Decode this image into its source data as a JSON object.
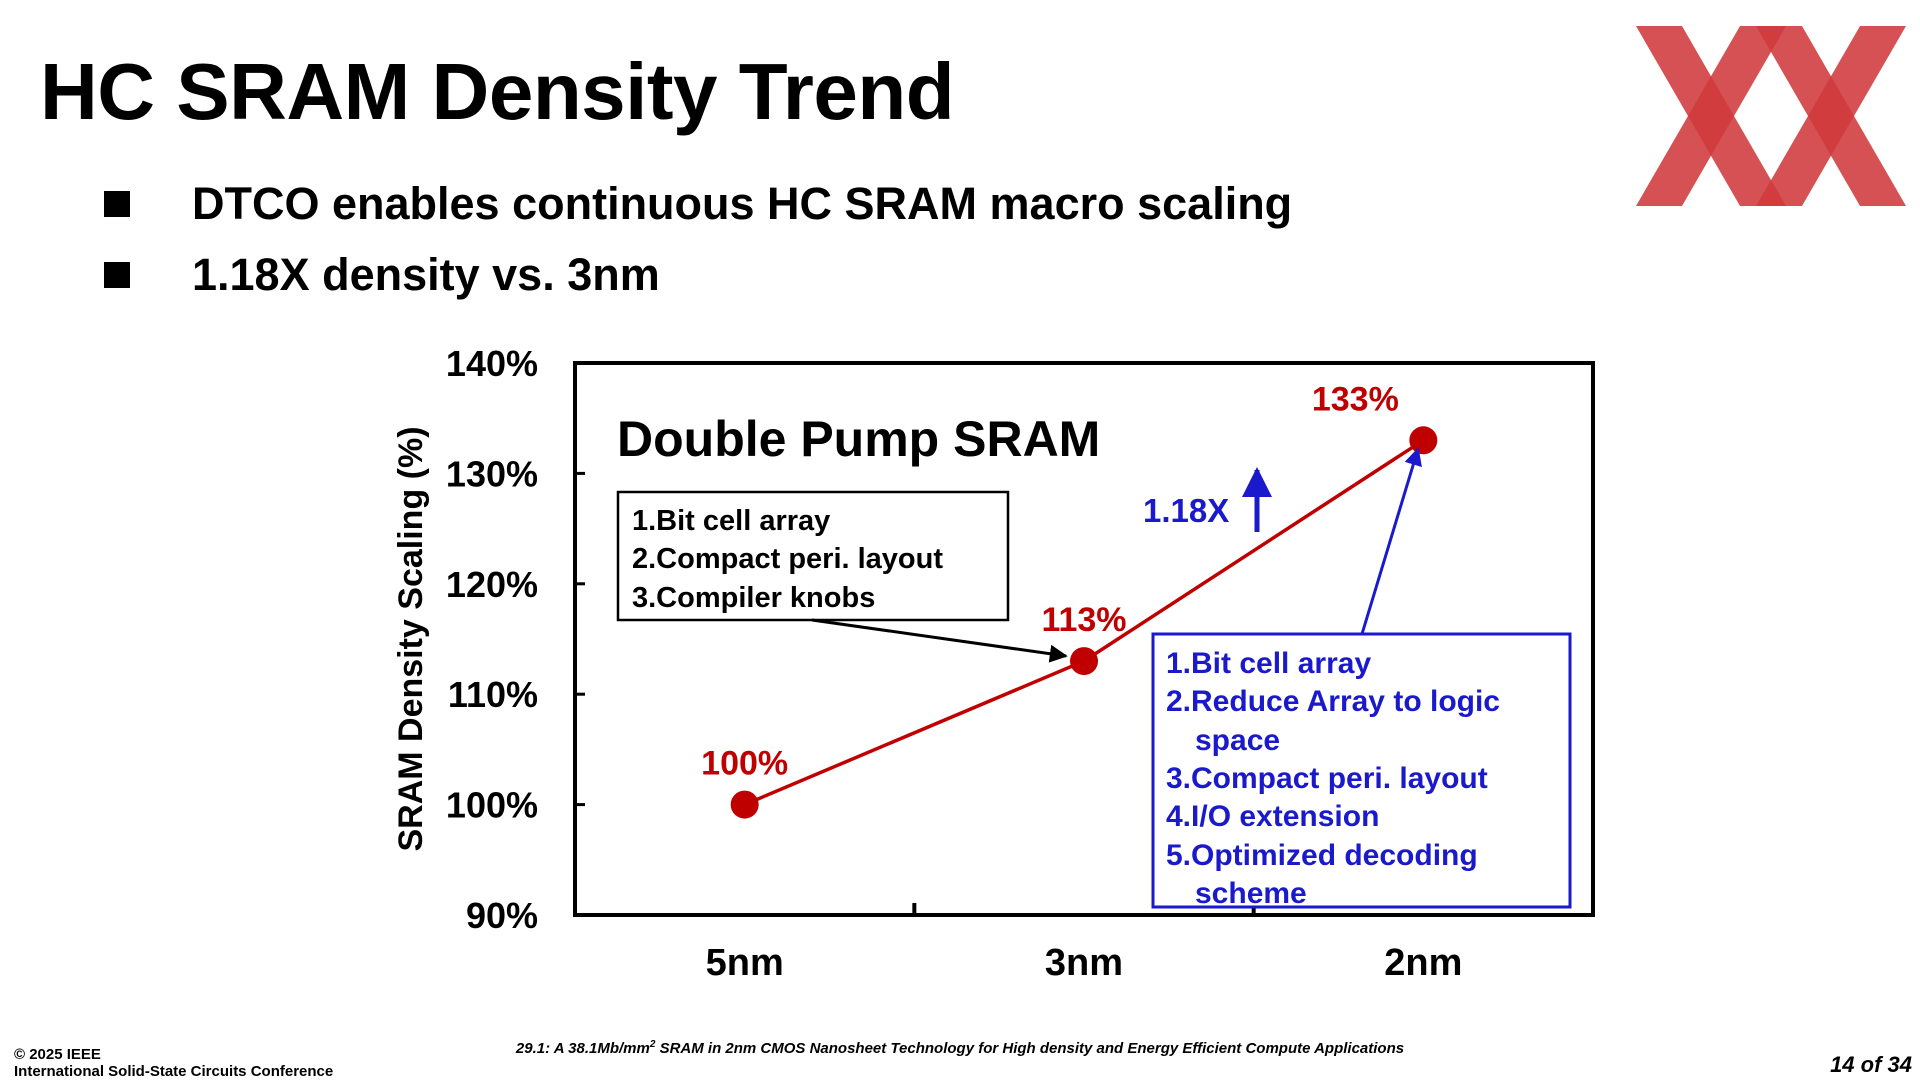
{
  "slide": {
    "title": "HC SRAM Density Trend",
    "bullets": [
      "DTCO enables continuous HC SRAM macro scaling",
      "1.18X density vs. 3nm"
    ],
    "logo_icon": "red-double-x-logo",
    "colors": {
      "accent_red": "#c00000",
      "accent_blue": "#1a1acc",
      "logo_red": "#d0393c"
    }
  },
  "chart_data": {
    "type": "line",
    "title": "Double Pump SRAM",
    "xlabel": "",
    "ylabel": "SRAM Density Scaling (%)",
    "categories": [
      "5nm",
      "3nm",
      "2nm"
    ],
    "values": [
      100,
      113,
      133
    ],
    "data_labels": [
      "100%",
      "113%",
      "133%"
    ],
    "ylim": [
      90,
      140
    ],
    "yticks": [
      90,
      100,
      110,
      120,
      130,
      140
    ],
    "ytick_labels": [
      "90%",
      "100%",
      "110%",
      "120%",
      "130%",
      "140%"
    ],
    "grid": false,
    "series_color": "#c00000",
    "annotations": {
      "scaling_label": "1.18X",
      "box_3nm": [
        "1.Bit cell array",
        "2.Compact peri. layout",
        "3.Compiler knobs"
      ],
      "box_2nm": [
        "1.Bit cell array",
        "2.Reduce Array to logic",
        "space",
        "3.Compact peri. layout",
        "4.I/O extension",
        "5.Optimized decoding",
        "scheme"
      ]
    }
  },
  "footer": {
    "copyright": "© 2025 IEEE",
    "conference": "International Solid-State Circuits Conference",
    "paper_pre": "29.1: A 38.1Mb/mm",
    "paper_sup": "2",
    "paper_post": " SRAM in 2nm CMOS Nanosheet Technology for High density and Energy Efficient Compute Applications",
    "page": "14 of 34"
  }
}
